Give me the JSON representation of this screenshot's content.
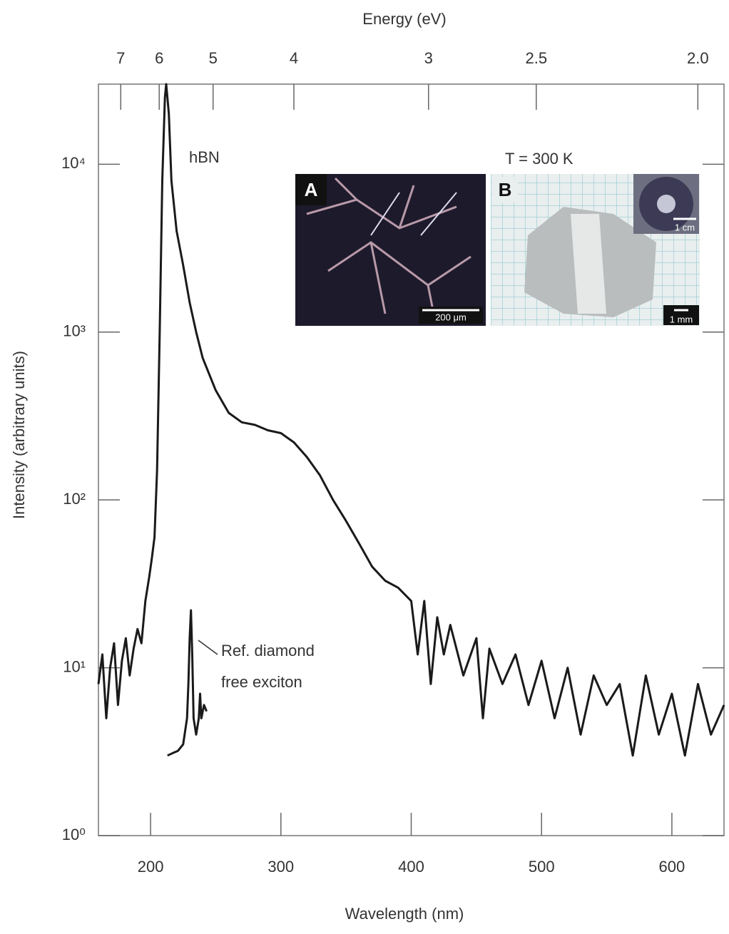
{
  "chart_data": {
    "type": "line",
    "xlabel": "Wavelength (nm)",
    "x2label": "Energy (eV)",
    "ylabel": "Intensity (arbitrary units)",
    "xlim": [
      160,
      640
    ],
    "xticks": [
      200,
      300,
      400,
      500,
      600
    ],
    "x2ticks": [
      7,
      6,
      5,
      4,
      3,
      2.5,
      {
        "value": 2,
        "label": "2.0"
      }
    ],
    "ylim": [
      1,
      30000
    ],
    "yscale": "log",
    "yticks": [
      {
        "value": 1,
        "label": "10⁰"
      },
      {
        "value": 10,
        "label": "10¹"
      },
      {
        "value": 100,
        "label": "10²"
      },
      {
        "value": 1000,
        "label": "10³"
      },
      {
        "value": 10000,
        "label": "10⁴"
      }
    ],
    "series": [
      {
        "name": "hBN",
        "color": "#1a1a1a",
        "x": [
          160,
          163,
          166,
          169,
          172,
          175,
          178,
          181,
          184,
          187,
          190,
          193,
          196,
          199,
          201,
          203,
          205,
          207,
          209,
          211,
          212,
          214,
          216,
          220,
          225,
          230,
          235,
          240,
          250,
          260,
          270,
          280,
          290,
          300,
          310,
          320,
          330,
          340,
          350,
          360,
          370,
          380,
          390,
          400,
          405,
          410,
          415,
          420,
          425,
          430,
          440,
          450,
          455,
          460,
          470,
          480,
          490,
          500,
          510,
          520,
          530,
          540,
          550,
          560,
          570,
          580,
          590,
          600,
          610,
          620,
          630,
          640
        ],
        "values": [
          8,
          12,
          5,
          10,
          14,
          6,
          11,
          15,
          9,
          13,
          17,
          14,
          25,
          35,
          45,
          60,
          150,
          1000,
          8000,
          25000,
          30000,
          20000,
          8000,
          4000,
          2500,
          1500,
          1000,
          700,
          450,
          330,
          290,
          280,
          260,
          250,
          220,
          180,
          140,
          100,
          75,
          55,
          40,
          33,
          30,
          25,
          12,
          25,
          8,
          20,
          12,
          18,
          9,
          15,
          5,
          13,
          8,
          12,
          6,
          11,
          5,
          10,
          4,
          9,
          6,
          8,
          3,
          9,
          4,
          7,
          3,
          8,
          4,
          6
        ]
      },
      {
        "name": "Ref. diamond free exciton",
        "color": "#1a1a1a",
        "x": [
          213,
          217,
          221,
          225,
          228,
          229,
          230,
          231,
          232,
          233,
          235,
          237,
          238,
          239,
          241,
          243
        ],
        "values": [
          3,
          3.1,
          3.2,
          3.5,
          5,
          8,
          15,
          22,
          12,
          5,
          4,
          5,
          7,
          5,
          6,
          5.5
        ]
      }
    ],
    "annotations": [
      "hBN",
      "Ref. diamond",
      "free exciton",
      "T = 300 K"
    ],
    "inset_labels": [
      "A",
      "B",
      "200 μm",
      "1 mm",
      "1 cm"
    ]
  }
}
